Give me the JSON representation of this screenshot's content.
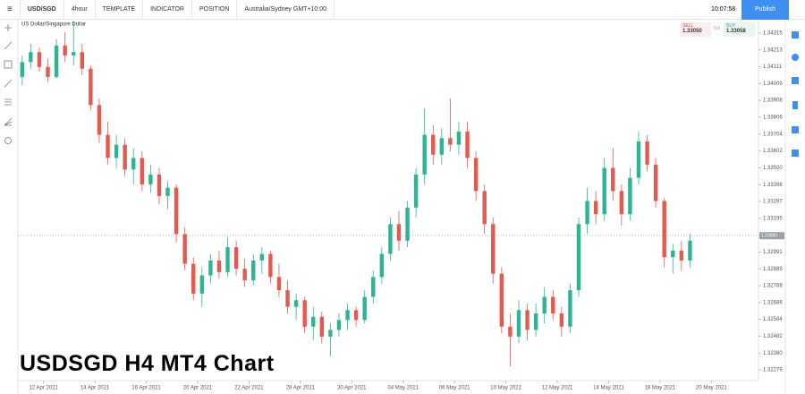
{
  "toolbar": {
    "symbol": "USD/SGD",
    "interval": "4hour",
    "template": "TEMPLATE",
    "indicator": "INDICATOR",
    "position": "POSITION",
    "timezone": "Australia/Sydney GMT+10:00",
    "clock": "10:07:58",
    "publish": "Publish"
  },
  "quote": {
    "sell_label": "SELL",
    "sell": "1.33050",
    "spread": "0.8",
    "buy_label": "BUY",
    "buy": "1.33058"
  },
  "overlay_title": "USDSGD H4 MT4 Chart",
  "chart_data": {
    "type": "candlestick",
    "title": "US Dollar/Singapore Dollar",
    "up_color": "#2bb592",
    "down_color": "#e5594f",
    "xlim": [
      -0.5,
      86
    ],
    "xticks": [
      {
        "value": 2.5,
        "label": "12 Apr 2021"
      },
      {
        "value": 8.5,
        "label": "14 Apr 2021"
      },
      {
        "value": 14.5,
        "label": "16 Apr 2021"
      },
      {
        "value": 20.5,
        "label": "20 Apr 2021"
      },
      {
        "value": 26.5,
        "label": "22 Apr 2021"
      },
      {
        "value": 32.5,
        "label": "28 Apr 2021"
      },
      {
        "value": 38.5,
        "label": "30 Apr 2021"
      },
      {
        "value": 44.5,
        "label": "04 May 2021"
      },
      {
        "value": 50.5,
        "label": "06 May 2021"
      },
      {
        "value": 56.5,
        "label": "10 May 2021"
      },
      {
        "value": 62.5,
        "label": "12 May 2021"
      },
      {
        "value": 68.5,
        "label": "14 May 2021"
      },
      {
        "value": 74.5,
        "label": "18 May 2021"
      },
      {
        "value": 80.5,
        "label": "20 May 2021"
      }
    ],
    "ylim": [
      1.32214,
      1.34407
    ],
    "yticks": [
      1.34315,
      1.34213,
      1.34111,
      1.34009,
      1.33908,
      1.33806,
      1.33704,
      1.33602,
      {
        "value": 1.335,
        "label": "1.33500"
      },
      1.33398,
      1.33297,
      1.33195,
      1.33093,
      1.32991,
      1.32889,
      1.32788,
      1.32686,
      1.32584,
      1.32482,
      {
        "value": 1.3238,
        "label": "1.32380"
      },
      1.32279
    ],
    "current_price": {
      "value": 1.3309,
      "label": "1.33090"
    },
    "candles": [
      [
        1.3405,
        1.3418,
        1.34,
        1.3414
      ],
      [
        1.3414,
        1.3425,
        1.341,
        1.342
      ],
      [
        1.342,
        1.3423,
        1.3408,
        1.3411
      ],
      [
        1.3411,
        1.3416,
        1.3402,
        1.3405
      ],
      [
        1.3405,
        1.3428,
        1.3404,
        1.3424
      ],
      [
        1.3424,
        1.3432,
        1.3414,
        1.3418
      ],
      [
        1.3418,
        1.3438,
        1.3412,
        1.342
      ],
      [
        1.342,
        1.3425,
        1.3406,
        1.341
      ],
      [
        1.341,
        1.3412,
        1.3385,
        1.3388
      ],
      [
        1.3388,
        1.3392,
        1.3365,
        1.337
      ],
      [
        1.337,
        1.3378,
        1.3352,
        1.3356
      ],
      [
        1.3356,
        1.337,
        1.335,
        1.3364
      ],
      [
        1.3364,
        1.3368,
        1.3345,
        1.3349
      ],
      [
        1.3349,
        1.3362,
        1.334,
        1.3356
      ],
      [
        1.3356,
        1.336,
        1.3336,
        1.334
      ],
      [
        1.334,
        1.3352,
        1.3335,
        1.3346
      ],
      [
        1.3346,
        1.335,
        1.3328,
        1.3333
      ],
      [
        1.3333,
        1.3342,
        1.3325,
        1.3338
      ],
      [
        1.3338,
        1.334,
        1.3305,
        1.331
      ],
      [
        1.331,
        1.3314,
        1.3288,
        1.3292
      ],
      [
        1.3292,
        1.3296,
        1.327,
        1.3274
      ],
      [
        1.3274,
        1.329,
        1.3266,
        1.3285
      ],
      [
        1.3285,
        1.3298,
        1.328,
        1.3294
      ],
      [
        1.3294,
        1.33,
        1.3283,
        1.3287
      ],
      [
        1.3287,
        1.3308,
        1.3284,
        1.3302
      ],
      [
        1.3302,
        1.3306,
        1.3285,
        1.3289
      ],
      [
        1.3289,
        1.3295,
        1.3278,
        1.3282
      ],
      [
        1.3282,
        1.3298,
        1.3279,
        1.3294
      ],
      [
        1.3294,
        1.3302,
        1.3286,
        1.3298
      ],
      [
        1.3298,
        1.33,
        1.328,
        1.3284
      ],
      [
        1.3284,
        1.3292,
        1.3272,
        1.3276
      ],
      [
        1.3276,
        1.3282,
        1.3262,
        1.3266
      ],
      [
        1.3266,
        1.3274,
        1.3258,
        1.327
      ],
      [
        1.327,
        1.3272,
        1.325,
        1.3254
      ],
      [
        1.3254,
        1.3266,
        1.3246,
        1.326
      ],
      [
        1.326,
        1.3263,
        1.3244,
        1.3248
      ],
      [
        1.3248,
        1.3256,
        1.3236,
        1.3252
      ],
      [
        1.3252,
        1.3262,
        1.3248,
        1.3258
      ],
      [
        1.3258,
        1.3268,
        1.3252,
        1.3264
      ],
      [
        1.3264,
        1.3266,
        1.3254,
        1.3258
      ],
      [
        1.3258,
        1.3276,
        1.3256,
        1.3272
      ],
      [
        1.3272,
        1.3288,
        1.3268,
        1.3284
      ],
      [
        1.3284,
        1.3302,
        1.328,
        1.3298
      ],
      [
        1.3298,
        1.332,
        1.3294,
        1.3316
      ],
      [
        1.3316,
        1.3324,
        1.33,
        1.3306
      ],
      [
        1.3306,
        1.333,
        1.3302,
        1.3326
      ],
      [
        1.3326,
        1.335,
        1.332,
        1.3346
      ],
      [
        1.3346,
        1.3386,
        1.334,
        1.337
      ],
      [
        1.337,
        1.3376,
        1.3352,
        1.3358
      ],
      [
        1.3358,
        1.3374,
        1.3352,
        1.3368
      ],
      [
        1.3368,
        1.3392,
        1.336,
        1.3364
      ],
      [
        1.3364,
        1.3378,
        1.3358,
        1.3372
      ],
      [
        1.3372,
        1.3378,
        1.335,
        1.3356
      ],
      [
        1.3356,
        1.336,
        1.333,
        1.3336
      ],
      [
        1.3336,
        1.334,
        1.331,
        1.3316
      ],
      [
        1.3316,
        1.332,
        1.328,
        1.3286
      ],
      [
        1.3286,
        1.329,
        1.325,
        1.3254
      ],
      [
        1.3254,
        1.3262,
        1.323,
        1.3248
      ],
      [
        1.3248,
        1.327,
        1.3244,
        1.3264
      ],
      [
        1.3264,
        1.3268,
        1.3246,
        1.3252
      ],
      [
        1.3252,
        1.3268,
        1.3248,
        1.3262
      ],
      [
        1.3262,
        1.3278,
        1.3256,
        1.3272
      ],
      [
        1.3272,
        1.3276,
        1.3258,
        1.3262
      ],
      [
        1.3262,
        1.3266,
        1.3248,
        1.3254
      ],
      [
        1.3254,
        1.328,
        1.325,
        1.3276
      ],
      [
        1.3276,
        1.332,
        1.3272,
        1.3316
      ],
      [
        1.3316,
        1.3338,
        1.331,
        1.333
      ],
      [
        1.333,
        1.3336,
        1.3316,
        1.3322
      ],
      [
        1.3322,
        1.3356,
        1.3318,
        1.335
      ],
      [
        1.335,
        1.3362,
        1.333,
        1.3336
      ],
      [
        1.3336,
        1.334,
        1.3315,
        1.3322
      ],
      [
        1.3322,
        1.335,
        1.3318,
        1.3344
      ],
      [
        1.3344,
        1.3372,
        1.334,
        1.3366
      ],
      [
        1.3366,
        1.337,
        1.3348,
        1.3352
      ],
      [
        1.3352,
        1.3356,
        1.3326,
        1.333
      ],
      [
        1.333,
        1.3332,
        1.329,
        1.3296
      ],
      [
        1.3296,
        1.3304,
        1.3286,
        1.33
      ],
      [
        1.33,
        1.3306,
        1.3288,
        1.3294
      ],
      [
        1.3294,
        1.331,
        1.329,
        1.3306
      ]
    ]
  }
}
